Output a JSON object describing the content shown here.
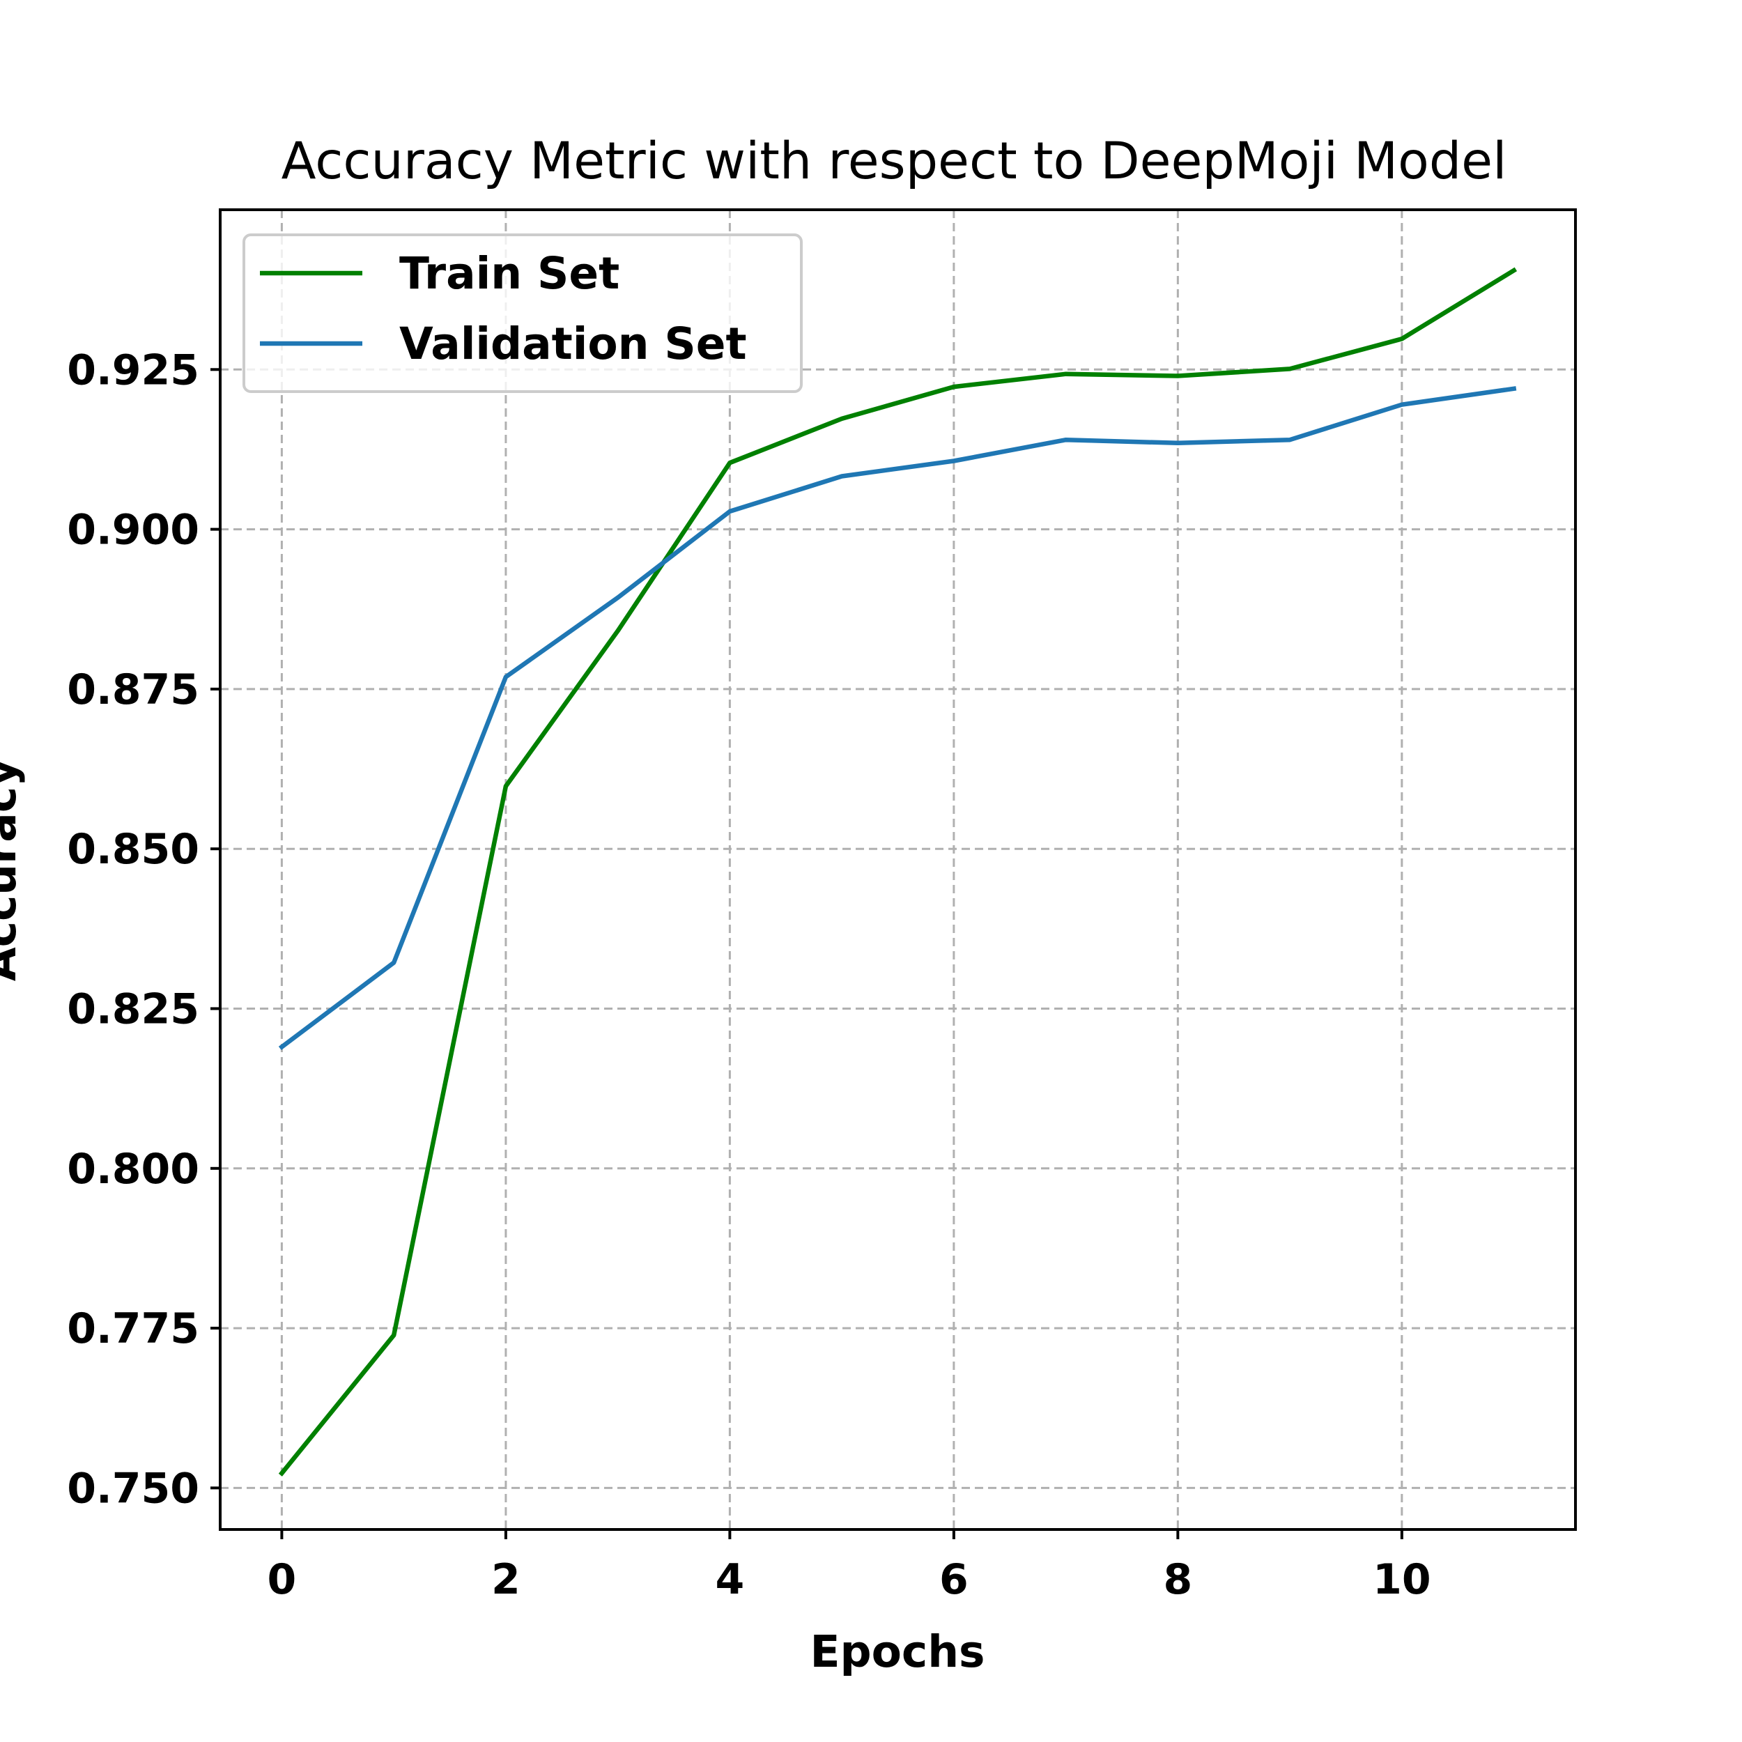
{
  "chart_data": {
    "type": "line",
    "title": "Accuracy Metric with respect to DeepMoji Model",
    "xlabel": "Epochs",
    "ylabel": "Accuracy",
    "x": [
      0,
      1,
      2,
      3,
      4,
      5,
      6,
      7,
      8,
      9,
      10,
      11
    ],
    "xlim": [
      -0.55,
      11.55
    ],
    "ylim": [
      0.7435,
      0.95
    ],
    "xticks": [
      0,
      2,
      4,
      6,
      8,
      10
    ],
    "xtick_labels": [
      "0",
      "2",
      "4",
      "6",
      "8",
      "10"
    ],
    "yticks": [
      0.75,
      0.775,
      0.8,
      0.825,
      0.85,
      0.875,
      0.9,
      0.925
    ],
    "ytick_labels": [
      "0.750",
      "0.775",
      "0.800",
      "0.825",
      "0.850",
      "0.875",
      "0.900",
      "0.925"
    ],
    "grid": true,
    "legend_position": "top-left",
    "series": [
      {
        "name": "Train Set",
        "color": "#008000",
        "values": [
          0.7523,
          0.7739,
          0.8598,
          0.8841,
          0.9104,
          0.9173,
          0.9223,
          0.9243,
          0.924,
          0.9251,
          0.9298,
          0.9405
        ]
      },
      {
        "name": "Validation Set",
        "color": "#1f77b4",
        "values": [
          0.819,
          0.8322,
          0.8769,
          0.8893,
          0.9028,
          0.9083,
          0.9107,
          0.914,
          0.9135,
          0.914,
          0.9195,
          0.922
        ]
      }
    ]
  }
}
